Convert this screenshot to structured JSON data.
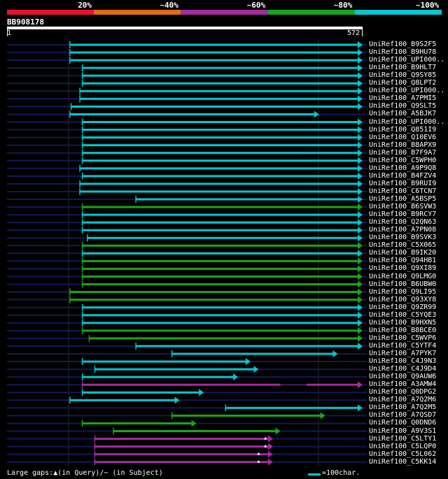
{
  "legend": {
    "segments": [
      {
        "label": "20%",
        "color": "#e8142a"
      },
      {
        "label": "~40%",
        "color": "#e46a12"
      },
      {
        "label": "~60%",
        "color": "#a62aa0"
      },
      {
        "label": "~80%",
        "color": "#1aa61a"
      },
      {
        "label": "~100%",
        "color": "#00c8d2"
      }
    ]
  },
  "query": {
    "name": "BB908178",
    "start": "1",
    "end": "572",
    "length": 572
  },
  "colors": {
    "cyan": "#00c8d2",
    "green": "#1aa61a",
    "magenta": "#a62aa0",
    "navy": "#121a55",
    "white": "#ffffff"
  },
  "hits": [
    {
      "label": "UniRef100_B9S2F5",
      "start": 102,
      "end": 572,
      "color": "cyan"
    },
    {
      "label": "UniRef100_B9HU78",
      "start": 102,
      "end": 572,
      "color": "cyan"
    },
    {
      "label": "UniRef100_UPI000..",
      "start": 102,
      "end": 572,
      "color": "cyan"
    },
    {
      "label": "UniRef100_B9HLT7",
      "start": 122,
      "end": 572,
      "color": "cyan"
    },
    {
      "label": "UniRef100_Q9SY85",
      "start": 122,
      "end": 572,
      "color": "cyan"
    },
    {
      "label": "UniRef100_Q8LPT2",
      "start": 122,
      "end": 572,
      "color": "cyan"
    },
    {
      "label": "UniRef100_UPI000..",
      "start": 118,
      "end": 572,
      "color": "cyan"
    },
    {
      "label": "UniRef100_A7PMI5",
      "start": 118,
      "end": 572,
      "color": "cyan"
    },
    {
      "label": "UniRef100_Q9SLT5",
      "start": 104,
      "end": 572,
      "color": "cyan"
    },
    {
      "label": "UniRef100_A5BJK7",
      "start": 102,
      "end": 502,
      "color": "cyan"
    },
    {
      "label": "UniRef100_UPI000..",
      "start": 122,
      "end": 572,
      "color": "cyan"
    },
    {
      "label": "UniRef100_Q851I9",
      "start": 122,
      "end": 572,
      "color": "cyan"
    },
    {
      "label": "UniRef100_Q10EV6",
      "start": 122,
      "end": 572,
      "color": "cyan"
    },
    {
      "label": "UniRef100_B8APX9",
      "start": 122,
      "end": 572,
      "color": "cyan"
    },
    {
      "label": "UniRef100_B7F9A7",
      "start": 122,
      "end": 572,
      "color": "cyan"
    },
    {
      "label": "UniRef100_C5WPH0",
      "start": 122,
      "end": 572,
      "color": "cyan"
    },
    {
      "label": "UniRef100_A9P9Q8",
      "start": 118,
      "end": 572,
      "color": "cyan"
    },
    {
      "label": "UniRef100_B4FZV4",
      "start": 122,
      "end": 572,
      "color": "cyan"
    },
    {
      "label": "UniRef100_B9RUI9",
      "start": 118,
      "end": 572,
      "color": "cyan"
    },
    {
      "label": "UniRef100_C6TCN7",
      "start": 118,
      "end": 572,
      "color": "cyan"
    },
    {
      "label": "UniRef100_A5BSP5",
      "start": 208,
      "end": 572,
      "color": "cyan"
    },
    {
      "label": "UniRef100_B6SVW3",
      "start": 122,
      "end": 572,
      "color": "green"
    },
    {
      "label": "UniRef100_B9RCY7",
      "start": 122,
      "end": 572,
      "color": "cyan"
    },
    {
      "label": "UniRef100_Q2QN63",
      "start": 122,
      "end": 572,
      "color": "cyan"
    },
    {
      "label": "UniRef100_A7PN08",
      "start": 122,
      "end": 572,
      "color": "cyan"
    },
    {
      "label": "UniRef100_B9SVK3",
      "start": 130,
      "end": 572,
      "color": "cyan"
    },
    {
      "label": "UniRef100_C5X065",
      "start": 122,
      "end": 572,
      "color": "green"
    },
    {
      "label": "UniRef100_B9IK20",
      "start": 122,
      "end": 572,
      "color": "cyan"
    },
    {
      "label": "UniRef100_Q94HB1",
      "start": 122,
      "end": 572,
      "color": "green"
    },
    {
      "label": "UniRef100_Q9XI89",
      "start": 122,
      "end": 572,
      "color": "green"
    },
    {
      "label": "UniRef100_Q9LMG0",
      "start": 122,
      "end": 572,
      "color": "green"
    },
    {
      "label": "UniRef100_B6UBW0",
      "start": 122,
      "end": 572,
      "color": "green"
    },
    {
      "label": "UniRef100_Q9LI95",
      "start": 102,
      "end": 572,
      "color": "green"
    },
    {
      "label": "UniRef100_Q93XY8",
      "start": 102,
      "end": 572,
      "color": "green"
    },
    {
      "label": "UniRef100_Q9ZR99",
      "start": 122,
      "end": 572,
      "color": "cyan"
    },
    {
      "label": "UniRef100_C5YQE3",
      "start": 122,
      "end": 572,
      "color": "cyan"
    },
    {
      "label": "UniRef100_B9HXN5",
      "start": 122,
      "end": 572,
      "color": "cyan"
    },
    {
      "label": "UniRef100_B8BCE0",
      "start": 122,
      "end": 572,
      "color": "green"
    },
    {
      "label": "UniRef100_C5WVP6",
      "start": 133,
      "end": 572,
      "color": "green"
    },
    {
      "label": "UniRef100_C5YTF4",
      "start": 208,
      "end": 572,
      "color": "cyan"
    },
    {
      "label": "UniRef100_A7PYK7",
      "start": 266,
      "end": 532,
      "color": "cyan"
    },
    {
      "label": "UniRef100_C4J9N3",
      "start": 122,
      "end": 392,
      "color": "cyan"
    },
    {
      "label": "UniRef100_C4J9D4",
      "start": 142,
      "end": 405,
      "color": "cyan"
    },
    {
      "label": "UniRef100_Q9AUW6",
      "start": 122,
      "end": 372,
      "color": "cyan"
    },
    {
      "label": "UniRef100_A3AMW4",
      "start": 122,
      "end": 572,
      "color": "magenta",
      "gap": [
        440,
        482
      ]
    },
    {
      "label": "UniRef100_Q0DPG2",
      "start": 122,
      "end": 317,
      "color": "cyan"
    },
    {
      "label": "UniRef100_A7Q2M6",
      "start": 102,
      "end": 278,
      "color": "cyan"
    },
    {
      "label": "UniRef100_A7Q2M5",
      "start": 352,
      "end": 572,
      "color": "cyan"
    },
    {
      "label": "UniRef100_A7QSD7",
      "start": 266,
      "end": 512,
      "color": "green"
    },
    {
      "label": "UniRef100_Q0DND6",
      "start": 122,
      "end": 305,
      "color": "green"
    },
    {
      "label": "UniRef100_A9V3S1",
      "start": 172,
      "end": 440,
      "color": "green"
    },
    {
      "label": "UniRef100_C5LTY1",
      "start": 142,
      "end": 428,
      "color": "magenta",
      "mark": 416
    },
    {
      "label": "UniRef100_C5LQP0",
      "start": 142,
      "end": 428,
      "color": "magenta",
      "mark": 416
    },
    {
      "label": "UniRef100_C5L062",
      "start": 142,
      "end": 428,
      "color": "magenta",
      "mark": 405
    },
    {
      "label": "UniRef100_C5KK14",
      "start": 142,
      "end": 428,
      "color": "magenta",
      "mark": 405
    }
  ],
  "footer": {
    "gaps_text": "Large gaps:▲(in Query)/− (in Subject)",
    "scale_text": "=100char."
  }
}
